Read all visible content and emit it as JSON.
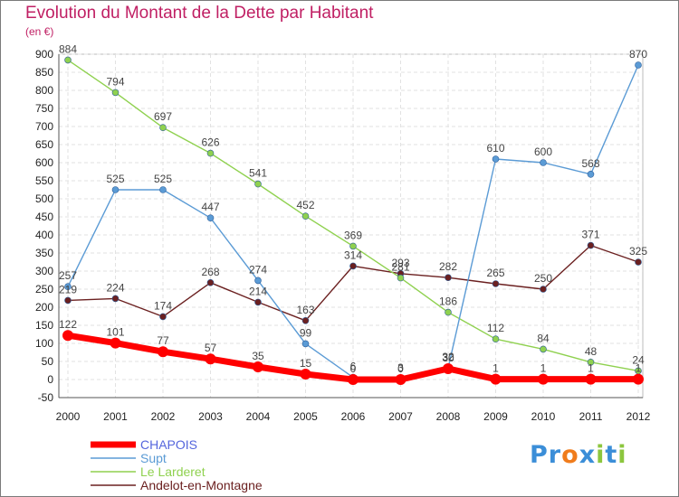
{
  "title": "Evolution du Montant de la Dette par Habitant",
  "unit": "(en €)",
  "brand": {
    "letters": [
      {
        "char": "P",
        "color": "#3b8ed8"
      },
      {
        "char": "r",
        "color": "#3b8ed8"
      },
      {
        "char": "o",
        "color": "#f07c1c"
      },
      {
        "char": "x",
        "color": "#3b8ed8"
      },
      {
        "char": "i",
        "color": "#8cc63e"
      },
      {
        "char": "t",
        "color": "#3b8ed8"
      },
      {
        "char": "i",
        "color": "#8cc63e"
      }
    ]
  },
  "chart_data": {
    "type": "line",
    "x": [
      2000,
      2001,
      2002,
      2003,
      2004,
      2005,
      2006,
      2007,
      2008,
      2009,
      2010,
      2011,
      2012
    ],
    "ylim": [
      -50,
      900
    ],
    "yticks": [
      -50,
      0,
      50,
      100,
      150,
      200,
      250,
      300,
      350,
      400,
      450,
      500,
      550,
      600,
      650,
      700,
      750,
      800,
      850,
      900
    ],
    "grid": true,
    "legend_position": "bottom-left",
    "series": [
      {
        "name": "CHAPOIS",
        "color": "#ff0000",
        "values": [
          122,
          101,
          77,
          57,
          35,
          15,
          0,
          0,
          30,
          1,
          1,
          1,
          1
        ],
        "labels": [
          "122",
          "101",
          "77",
          "57",
          "35",
          "15",
          "0",
          "0",
          "30",
          "1",
          "1",
          "1",
          "1"
        ]
      },
      {
        "name": "Supt",
        "color": "#5b9bd5",
        "values": [
          257,
          525,
          525,
          447,
          274,
          99,
          6,
          3,
          32,
          610,
          600,
          568,
          870
        ],
        "labels": [
          "257",
          "525",
          "525",
          "447",
          "274",
          "99",
          "6",
          "3",
          "32",
          "610",
          "600",
          "568",
          "870"
        ]
      },
      {
        "name": "Le Larderet",
        "color": "#8fd14f",
        "values": [
          884,
          794,
          697,
          626,
          541,
          452,
          369,
          281,
          186,
          112,
          84,
          48,
          24
        ],
        "labels": [
          "884",
          "794",
          "697",
          "626",
          "541",
          "452",
          "369",
          "281",
          "186",
          "112",
          "84",
          "48",
          "24"
        ]
      },
      {
        "name": "Andelot-en-Montagne",
        "color": "#6b2020",
        "values": [
          219,
          224,
          174,
          268,
          214,
          163,
          314,
          293,
          282,
          265,
          250,
          371,
          325
        ],
        "labels": [
          "219",
          "224",
          "174",
          "268",
          "214",
          "163",
          "314",
          "293",
          "282",
          "265",
          "250",
          "371",
          "325"
        ]
      }
    ]
  }
}
